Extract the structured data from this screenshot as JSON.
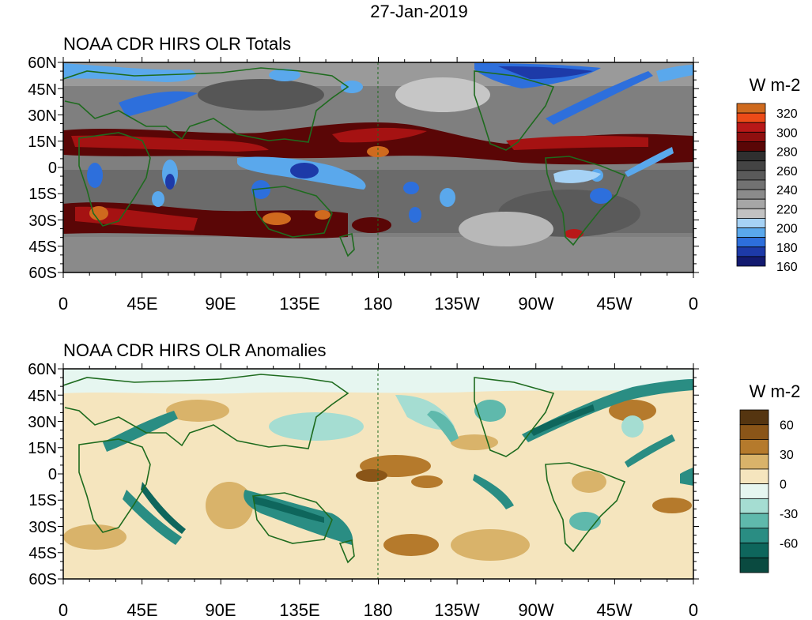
{
  "date": "27-Jan-2019",
  "colors": {
    "land_outline": "#1e6b1e",
    "frame": "#000000"
  },
  "lat_labels": [
    "60N",
    "45N",
    "30N",
    "15N",
    "0",
    "15S",
    "30S",
    "45S",
    "60S"
  ],
  "lon_labels": [
    "0",
    "45E",
    "90E",
    "135E",
    "180",
    "135W",
    "90W",
    "45W",
    "0"
  ],
  "panels": [
    {
      "id": "totals",
      "title": "NOAA CDR HIRS OLR Totals",
      "units": "W m-2",
      "colorbar": {
        "colors": [
          "#cf6a1e",
          "#ec4b18",
          "#b81818",
          "#8f0f0f",
          "#5a0606",
          "#2f2f2f",
          "#444444",
          "#5a5a5a",
          "#727272",
          "#8b8b8b",
          "#a6a6a6",
          "#c2c2c2",
          "#a6d2f5",
          "#5aa8ec",
          "#2d6fdc",
          "#1d3aa8",
          "#131a70"
        ],
        "labels": [
          "320",
          "300",
          "280",
          "260",
          "240",
          "220",
          "200",
          "180",
          "160"
        ]
      }
    },
    {
      "id": "anomalies",
      "title": "NOAA CDR HIRS OLR Anomalies",
      "units": "W m-2",
      "colorbar": {
        "colors": [
          "#553510",
          "#8a5518",
          "#b57a2c",
          "#d9b36a",
          "#f5e5be",
          "#e6f6f0",
          "#a5ddd2",
          "#5fb9ac",
          "#2a8d83",
          "#0e665c",
          "#0a4a40"
        ],
        "labels": [
          "60",
          "30",
          "0",
          "-30",
          "-60"
        ]
      }
    }
  ]
}
